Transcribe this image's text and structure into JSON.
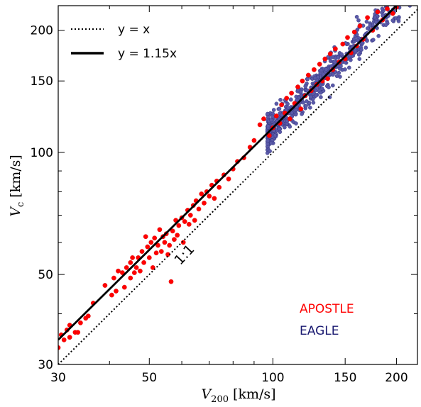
{
  "chart_data": {
    "type": "scatter",
    "x_scale": "log",
    "y_scale": "log",
    "xlim": [
      30,
      225
    ],
    "ylim": [
      30,
      230
    ],
    "x_ticks": [
      30,
      50,
      100,
      150,
      200
    ],
    "y_ticks": [
      30,
      50,
      100,
      150,
      200
    ],
    "x_minor_ticks": [
      40,
      60,
      70,
      80,
      90
    ],
    "y_minor_ticks": [
      40,
      60,
      70,
      80,
      90
    ],
    "xlabel_main": "V",
    "xlabel_sub": "200",
    "xlabel_unit": " [km/s]",
    "ylabel_main": "V",
    "ylabel_sub": "c",
    "ylabel_unit": " [km/s]",
    "legend": {
      "placement": "top-left",
      "entries": [
        {
          "label": "y = x",
          "style": "dotted"
        },
        {
          "label": "y = 1.15x",
          "style": "solid"
        }
      ]
    },
    "lines": [
      {
        "name": "y = x",
        "slope": 1.0,
        "style": "dotted",
        "color": "#000000"
      },
      {
        "name": "y = 1.15x",
        "slope": 1.15,
        "style": "solid",
        "color": "#000000"
      }
    ],
    "annotation": {
      "text": "1:1",
      "x": 62,
      "y": 55,
      "rotation_deg": -47
    },
    "series_labels": [
      {
        "text": "APOSTLE",
        "color": "#ff0000"
      },
      {
        "text": "EAGLE",
        "color": "#191970"
      }
    ],
    "series": [
      {
        "name": "EAGLE",
        "color": "#5a5aa8",
        "marker_radius": 2.6,
        "generator": {
          "seed": 7,
          "count": 620,
          "x_range": [
            97,
            225
          ],
          "slope": 1.15,
          "log_scatter": 0.045,
          "density_power": 1.8
        }
      },
      {
        "name": "APOSTLE",
        "color": "#ff0000",
        "marker_radius": 3.2,
        "points": [
          [
            30.0,
            33.0
          ],
          [
            30.5,
            35.5
          ],
          [
            31.0,
            34.5
          ],
          [
            31.5,
            36.5
          ],
          [
            32.0,
            35.0
          ],
          [
            32.0,
            37.5
          ],
          [
            33.0,
            36.0
          ],
          [
            33.5,
            36.0
          ],
          [
            34.0,
            38.0
          ],
          [
            35.0,
            39.0
          ],
          [
            35.5,
            39.5
          ],
          [
            36.5,
            42.5
          ],
          [
            39.0,
            47.0
          ],
          [
            40.5,
            44.5
          ],
          [
            41.0,
            49.0
          ],
          [
            41.5,
            45.5
          ],
          [
            42.0,
            51.0
          ],
          [
            43.0,
            50.5
          ],
          [
            43.5,
            46.5
          ],
          [
            44.0,
            52.0
          ],
          [
            45.0,
            53.5
          ],
          [
            45.0,
            49.0
          ],
          [
            45.5,
            55.0
          ],
          [
            46.0,
            50.5
          ],
          [
            46.5,
            52.0
          ],
          [
            47.0,
            55.0
          ],
          [
            47.5,
            51.0
          ],
          [
            48.0,
            57.0
          ],
          [
            48.5,
            53.5
          ],
          [
            49.0,
            62.0
          ],
          [
            49.5,
            58.5
          ],
          [
            50.0,
            55.0
          ],
          [
            50.5,
            60.0
          ],
          [
            51.0,
            52.0
          ],
          [
            51.5,
            61.5
          ],
          [
            52.0,
            56.5
          ],
          [
            52.5,
            59.0
          ],
          [
            53.0,
            64.5
          ],
          [
            53.5,
            57.0
          ],
          [
            54.0,
            62.0
          ],
          [
            54.5,
            60.0
          ],
          [
            55.0,
            63.0
          ],
          [
            55.5,
            56.0
          ],
          [
            56.0,
            59.0
          ],
          [
            56.5,
            48.0
          ],
          [
            57.0,
            64.0
          ],
          [
            57.5,
            61.0
          ],
          [
            58.0,
            68.0
          ],
          [
            58.5,
            62.5
          ],
          [
            59.0,
            66.0
          ],
          [
            60.0,
            69.0
          ],
          [
            60.5,
            60.0
          ],
          [
            61.0,
            67.5
          ],
          [
            62.0,
            72.0
          ],
          [
            62.5,
            66.5
          ],
          [
            63.0,
            70.0
          ],
          [
            64.0,
            74.0
          ],
          [
            64.5,
            68.0
          ],
          [
            65.0,
            76.0
          ],
          [
            66.0,
            72.5
          ],
          [
            67.0,
            79.0
          ],
          [
            68.0,
            75.0
          ],
          [
            69.0,
            80.0
          ],
          [
            70.0,
            78.0
          ],
          [
            71.0,
            83.0
          ],
          [
            72.0,
            77.0
          ],
          [
            73.0,
            85.0
          ],
          [
            74.0,
            82.0
          ],
          [
            76.0,
            88.0
          ],
          [
            78.0,
            86.0
          ],
          [
            80.0,
            91.0
          ],
          [
            82.0,
            95.0
          ],
          [
            85.0,
            97.0
          ],
          [
            88.0,
            103.0
          ],
          [
            90.0,
            107.0
          ],
          [
            93.0,
            117.0
          ],
          [
            95.0,
            121.0
          ],
          [
            98.0,
            110.0
          ],
          [
            100.0,
            115.0
          ],
          [
            102.0,
            123.0
          ],
          [
            104.0,
            118.0
          ],
          [
            105.0,
            131.0
          ],
          [
            107.0,
            125.0
          ],
          [
            108.0,
            136.0
          ],
          [
            110.0,
            121.0
          ],
          [
            111.0,
            140.0
          ],
          [
            113.0,
            132.0
          ],
          [
            115.0,
            145.0
          ],
          [
            117.0,
            128.0
          ],
          [
            118.0,
            150.0
          ],
          [
            120.0,
            138.0
          ],
          [
            122.0,
            155.0
          ],
          [
            124.0,
            142.0
          ],
          [
            126.0,
            160.0
          ],
          [
            128.0,
            147.0
          ],
          [
            130.0,
            165.0
          ],
          [
            132.0,
            150.0
          ],
          [
            134.0,
            170.0
          ],
          [
            136.0,
            152.0
          ],
          [
            138.0,
            175.0
          ],
          [
            140.0,
            160.0
          ],
          [
            142.0,
            180.0
          ],
          [
            145.0,
            167.0
          ],
          [
            148.0,
            185.0
          ],
          [
            150.0,
            170.0
          ],
          [
            152.0,
            192.0
          ],
          [
            155.0,
            176.0
          ],
          [
            158.0,
            198.0
          ],
          [
            160.0,
            183.0
          ],
          [
            163.0,
            205.0
          ],
          [
            166.0,
            190.0
          ],
          [
            170.0,
            215.0
          ],
          [
            175.0,
            200.0
          ],
          [
            180.0,
            222.0
          ],
          [
            185.0,
            212.0
          ],
          [
            190.0,
            226.0
          ],
          [
            196.0,
            220.0
          ],
          [
            200.0,
            228.0
          ]
        ]
      }
    ]
  }
}
